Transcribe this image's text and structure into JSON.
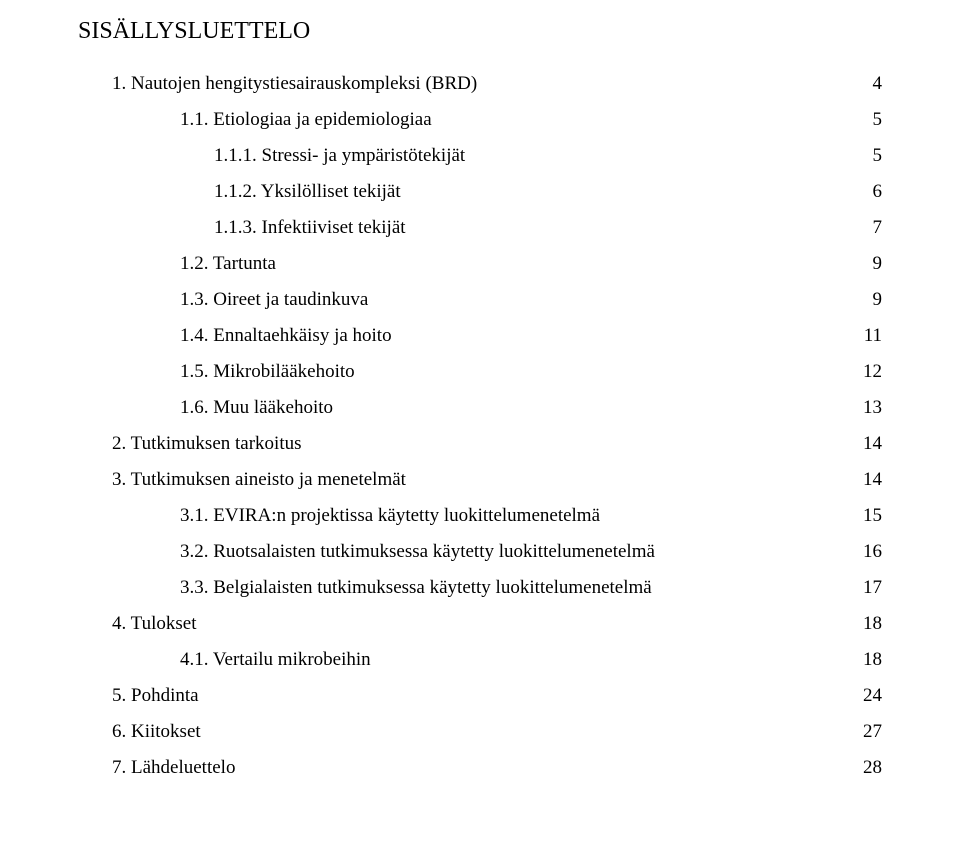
{
  "title": "SISÄLLYSLUETTELO",
  "toc": [
    {
      "indent": 0,
      "label": "1.  Nautojen hengitystiesairauskompleksi (BRD)",
      "page": "4"
    },
    {
      "indent": 1,
      "label": "1.1. Etiologiaa ja epidemiologiaa",
      "page": "5"
    },
    {
      "indent": 2,
      "label": "1.1.1. Stressi- ja ympäristötekijät",
      "page": "5"
    },
    {
      "indent": 2,
      "label": "1.1.2. Yksilölliset tekijät",
      "page": "6"
    },
    {
      "indent": 2,
      "label": "1.1.3. Infektiiviset tekijät",
      "page": "7"
    },
    {
      "indent": 1,
      "label": "1.2. Tartunta",
      "page": "9"
    },
    {
      "indent": 1,
      "label": "1.3. Oireet ja taudinkuva",
      "page": "9"
    },
    {
      "indent": 1,
      "label": "1.4. Ennaltaehkäisy ja hoito",
      "page": "11"
    },
    {
      "indent": 1,
      "label": "1.5. Mikrobilääkehoito",
      "page": "12"
    },
    {
      "indent": 1,
      "label": "1.6. Muu lääkehoito",
      "page": "13"
    },
    {
      "indent": 0,
      "label": "2.  Tutkimuksen tarkoitus",
      "page": "14"
    },
    {
      "indent": 0,
      "label": "3.  Tutkimuksen aineisto ja menetelmät",
      "page": "14"
    },
    {
      "indent": 1,
      "label": "3.1. EVIRA:n projektissa käytetty luokittelumenetelmä",
      "page": "15"
    },
    {
      "indent": 1,
      "label": "3.2. Ruotsalaisten tutkimuksessa käytetty luokittelumenetelmä",
      "page": "16"
    },
    {
      "indent": 1,
      "label": "3.3. Belgialaisten tutkimuksessa käytetty luokittelumenetelmä",
      "page": "17"
    },
    {
      "indent": 0,
      "label": "4.  Tulokset",
      "page": " 18"
    },
    {
      "indent": 1,
      "label": "4.1. Vertailu mikrobeihin",
      "page": "18"
    },
    {
      "indent": 0,
      "label": "5.  Pohdinta",
      "page": "24"
    },
    {
      "indent": 0,
      "label": "6.  Kiitokset",
      "page": "27"
    },
    {
      "indent": 0,
      "label": "7.  Lähdeluettelo",
      "page": "28"
    }
  ]
}
